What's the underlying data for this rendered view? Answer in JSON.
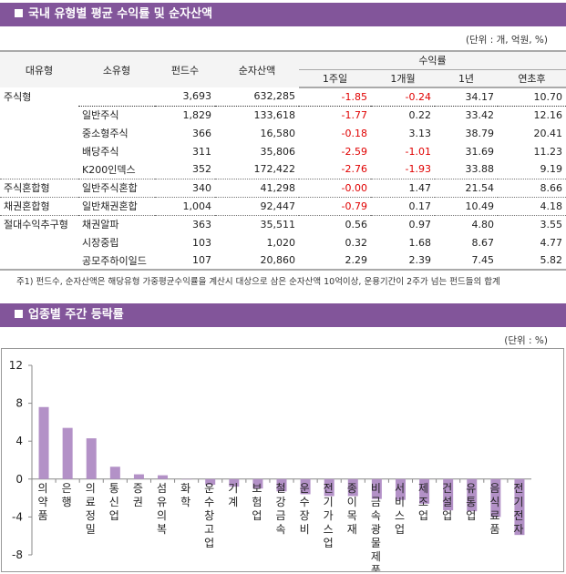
{
  "section1": {
    "title": "국내 유형별 평균 수익률 및 순자산액",
    "unit": "(단위 : 개, 억원, %)"
  },
  "table": {
    "headers": {
      "major": "대유형",
      "minor": "소유형",
      "funds": "펀드수",
      "nav": "순자산액",
      "return": "수익률",
      "w1": "1주일",
      "m1": "1개월",
      "y1": "1년",
      "ytd": "연초후"
    },
    "rows": [
      {
        "major": "주식형",
        "minor": "",
        "funds": "3,693",
        "nav": "632,285",
        "w1": "-1.85",
        "m1": "-0.24",
        "y1": "34.17",
        "ytd": "10.70"
      },
      {
        "major": "",
        "minor": "일반주식",
        "funds": "1,829",
        "nav": "133,618",
        "w1": "-1.77",
        "m1": "0.22",
        "y1": "33.42",
        "ytd": "12.16"
      },
      {
        "major": "",
        "minor": "중소형주식",
        "funds": "366",
        "nav": "16,580",
        "w1": "-0.18",
        "m1": "3.13",
        "y1": "38.79",
        "ytd": "20.41"
      },
      {
        "major": "",
        "minor": "배당주식",
        "funds": "311",
        "nav": "35,806",
        "w1": "-2.59",
        "m1": "-1.01",
        "y1": "31.69",
        "ytd": "11.23"
      },
      {
        "major": "",
        "minor": "K200인덱스",
        "funds": "352",
        "nav": "172,422",
        "w1": "-2.76",
        "m1": "-1.93",
        "y1": "33.88",
        "ytd": "9.19"
      },
      {
        "major": "주식혼합형",
        "minor": "일반주식혼합",
        "funds": "340",
        "nav": "41,298",
        "w1": "-0.00",
        "m1": "1.47",
        "y1": "21.54",
        "ytd": "8.66"
      },
      {
        "major": "채권혼합형",
        "minor": "일반채권혼합",
        "funds": "1,004",
        "nav": "92,447",
        "w1": "-0.79",
        "m1": "0.17",
        "y1": "10.49",
        "ytd": "4.18"
      },
      {
        "major": "절대수익추구형",
        "minor": "채권알파",
        "funds": "363",
        "nav": "35,511",
        "w1": "0.56",
        "m1": "0.97",
        "y1": "4.80",
        "ytd": "3.55"
      },
      {
        "major": "",
        "minor": "시장중립",
        "funds": "103",
        "nav": "1,020",
        "w1": "0.32",
        "m1": "1.68",
        "y1": "8.67",
        "ytd": "4.77"
      },
      {
        "major": "",
        "minor": "공모주하이일드",
        "funds": "107",
        "nav": "20,860",
        "w1": "2.29",
        "m1": "2.39",
        "y1": "7.45",
        "ytd": "5.82"
      }
    ],
    "note": "주1) 펀드수, 순자산액은 해당유형 가중평균수익률을 계산시 대상으로 삼은 순자산액 10억이상, 운용기간이 2주가 넘는 펀드들의 합계"
  },
  "section2": {
    "title": "업종별 주간 등락률",
    "unit": "(단위 : %)"
  },
  "colors": {
    "header_bar": "#82559a",
    "bar": "#b391c7",
    "negative": "#e00000"
  },
  "chart_data": {
    "type": "bar",
    "categories": [
      "의약품",
      "은 행",
      "의료정밀",
      "통신업",
      "증 권",
      "섬유의복",
      "화 학",
      "운수창고업",
      "기 계",
      "보험업",
      "철강금속",
      "운수장비",
      "전기가스업",
      "종이목재",
      "비금속광물제품",
      "서비스업",
      "제조업",
      "건설업",
      "유통업",
      "음식료품",
      "전기전자"
    ],
    "values": [
      7.6,
      5.4,
      4.3,
      1.3,
      0.5,
      0.4,
      0.0,
      -0.6,
      -0.8,
      -1.0,
      -1.3,
      -1.6,
      -1.8,
      -1.8,
      -2.1,
      -2.2,
      -2.6,
      -3.3,
      -3.4,
      -4.0,
      -5.9
    ],
    "ylim": [
      -8,
      12
    ],
    "yticks": [
      "12",
      "8",
      "4",
      "0",
      "-4",
      "-8"
    ],
    "grid": false,
    "legend": "none"
  }
}
